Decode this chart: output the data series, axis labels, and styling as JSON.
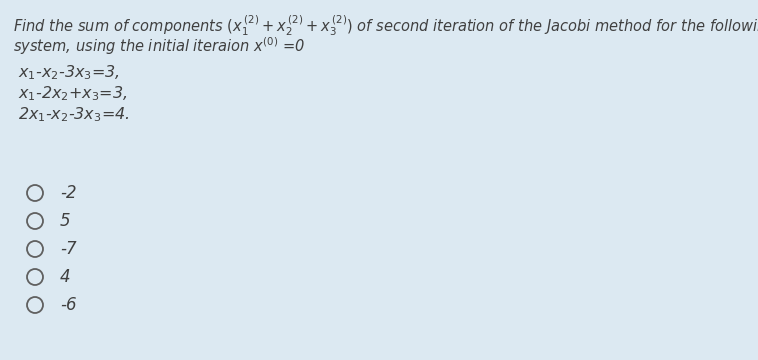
{
  "background_color": "#dce9f2",
  "title_line1": "Find the sum of components $(x_1^{\\,(2)} +x_2^{\\,(2)} +x_3^{\\,(2)})$ of second iteration of the Jacobi method for the following linear",
  "title_line2": "system, using the initial iteraion $x^{(0)}$ =0",
  "equations": [
    "$x_1$-$x_2$-3$x_3$=3,",
    "$x_1$-2$x_2$+$x_3$=3,",
    "2$x_1$-$x_2$-3$x_3$=4."
  ],
  "options": [
    "-2",
    "5",
    "-7",
    "4",
    "-6"
  ],
  "text_color": "#404040",
  "circle_color": "#606060",
  "font_size_title": 10.5,
  "font_size_eq": 11.5,
  "font_size_opt": 12
}
